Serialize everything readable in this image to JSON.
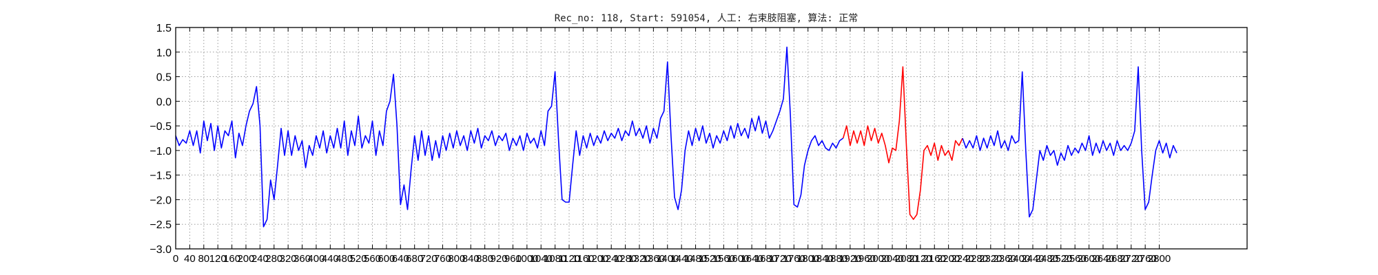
{
  "chart_data": {
    "type": "line",
    "title": "Rec_no: 118, Start: 591054, 人工: 右束肢阻塞, 算法: 正常",
    "xlabel": "",
    "ylabel": "",
    "xlim": [
      0,
      3050
    ],
    "ylim": [
      -3.0,
      1.5
    ],
    "yticks": [
      1.5,
      1.0,
      0.5,
      0.0,
      -0.5,
      -1.0,
      -1.5,
      -2.0,
      -2.5,
      -3.0
    ],
    "ytick_labels": [
      "1.5",
      "1.0",
      "0.5",
      "0.0",
      "−0.5",
      "−1.0",
      "−1.5",
      "−2.0",
      "−2.5",
      "−3.0"
    ],
    "xticks_step": 40,
    "xticks_max": 2800,
    "grid": true,
    "grid_style": "dotted",
    "colors": {
      "normal": "#0000ff",
      "highlight": "#ff0000",
      "axes": "#000000",
      "grid": "#9a9a9a"
    },
    "series": [
      {
        "color": "#0000ff",
        "values": [
          [
            0,
            -0.7
          ],
          [
            10,
            -0.9
          ],
          [
            20,
            -0.78
          ],
          [
            30,
            -0.85
          ],
          [
            40,
            -0.6
          ],
          [
            50,
            -0.9
          ],
          [
            60,
            -0.6
          ],
          [
            70,
            -1.05
          ],
          [
            80,
            -0.4
          ],
          [
            90,
            -0.8
          ],
          [
            100,
            -0.45
          ],
          [
            110,
            -1.0
          ],
          [
            120,
            -0.5
          ],
          [
            130,
            -0.95
          ],
          [
            140,
            -0.6
          ],
          [
            150,
            -0.7
          ],
          [
            160,
            -0.4
          ],
          [
            170,
            -1.15
          ],
          [
            180,
            -0.65
          ],
          [
            190,
            -0.9
          ],
          [
            200,
            -0.5
          ],
          [
            210,
            -0.2
          ],
          [
            220,
            -0.05
          ],
          [
            230,
            0.3
          ],
          [
            240,
            -0.5
          ],
          [
            250,
            -2.55
          ],
          [
            260,
            -2.4
          ],
          [
            270,
            -1.6
          ],
          [
            280,
            -2.0
          ],
          [
            290,
            -1.3
          ],
          [
            300,
            -0.55
          ],
          [
            310,
            -1.1
          ],
          [
            320,
            -0.6
          ],
          [
            330,
            -1.1
          ],
          [
            340,
            -0.7
          ],
          [
            350,
            -1.0
          ],
          [
            360,
            -0.8
          ],
          [
            370,
            -1.35
          ],
          [
            380,
            -0.9
          ],
          [
            390,
            -1.1
          ],
          [
            400,
            -0.7
          ],
          [
            410,
            -0.95
          ],
          [
            420,
            -0.6
          ],
          [
            430,
            -1.05
          ],
          [
            440,
            -0.7
          ],
          [
            450,
            -0.95
          ],
          [
            460,
            -0.55
          ],
          [
            470,
            -0.95
          ],
          [
            480,
            -0.4
          ],
          [
            490,
            -1.1
          ],
          [
            500,
            -0.6
          ],
          [
            510,
            -0.9
          ],
          [
            520,
            -0.3
          ],
          [
            530,
            -0.95
          ],
          [
            540,
            -0.7
          ],
          [
            550,
            -0.85
          ],
          [
            560,
            -0.4
          ],
          [
            570,
            -1.1
          ],
          [
            580,
            -0.6
          ],
          [
            590,
            -0.9
          ],
          [
            600,
            -0.2
          ],
          [
            610,
            0.0
          ],
          [
            620,
            0.55
          ],
          [
            630,
            -0.5
          ],
          [
            640,
            -2.1
          ],
          [
            650,
            -1.7
          ],
          [
            660,
            -2.2
          ],
          [
            670,
            -1.4
          ],
          [
            680,
            -0.7
          ],
          [
            690,
            -1.2
          ],
          [
            700,
            -0.6
          ],
          [
            710,
            -1.1
          ],
          [
            720,
            -0.7
          ],
          [
            730,
            -1.2
          ],
          [
            740,
            -0.8
          ],
          [
            750,
            -1.15
          ],
          [
            760,
            -0.7
          ],
          [
            770,
            -1.0
          ],
          [
            780,
            -0.65
          ],
          [
            790,
            -0.95
          ],
          [
            800,
            -0.6
          ],
          [
            810,
            -0.9
          ],
          [
            820,
            -0.7
          ],
          [
            830,
            -1.0
          ],
          [
            840,
            -0.6
          ],
          [
            850,
            -0.85
          ],
          [
            860,
            -0.55
          ],
          [
            870,
            -0.95
          ],
          [
            880,
            -0.7
          ],
          [
            890,
            -0.8
          ],
          [
            900,
            -0.6
          ],
          [
            910,
            -0.9
          ],
          [
            920,
            -0.7
          ],
          [
            930,
            -0.8
          ],
          [
            940,
            -0.65
          ],
          [
            950,
            -1.0
          ],
          [
            960,
            -0.75
          ],
          [
            970,
            -0.9
          ],
          [
            980,
            -0.7
          ],
          [
            990,
            -1.0
          ],
          [
            1000,
            -0.65
          ],
          [
            1010,
            -0.85
          ],
          [
            1020,
            -0.75
          ],
          [
            1030,
            -0.95
          ],
          [
            1040,
            -0.6
          ],
          [
            1050,
            -0.9
          ],
          [
            1060,
            -0.2
          ],
          [
            1070,
            -0.1
          ],
          [
            1080,
            0.6
          ],
          [
            1090,
            -0.8
          ],
          [
            1100,
            -2.0
          ],
          [
            1110,
            -2.05
          ],
          [
            1120,
            -2.05
          ],
          [
            1130,
            -1.3
          ],
          [
            1140,
            -0.6
          ],
          [
            1150,
            -1.1
          ],
          [
            1160,
            -0.7
          ],
          [
            1170,
            -0.95
          ],
          [
            1180,
            -0.65
          ],
          [
            1190,
            -0.9
          ],
          [
            1200,
            -0.7
          ],
          [
            1210,
            -0.85
          ],
          [
            1220,
            -0.6
          ],
          [
            1230,
            -0.8
          ],
          [
            1240,
            -0.65
          ],
          [
            1250,
            -0.75
          ],
          [
            1260,
            -0.55
          ],
          [
            1270,
            -0.8
          ],
          [
            1280,
            -0.6
          ],
          [
            1290,
            -0.7
          ],
          [
            1300,
            -0.4
          ],
          [
            1310,
            -0.7
          ],
          [
            1320,
            -0.55
          ],
          [
            1330,
            -0.75
          ],
          [
            1340,
            -0.5
          ],
          [
            1350,
            -0.85
          ],
          [
            1360,
            -0.55
          ],
          [
            1370,
            -0.75
          ],
          [
            1380,
            -0.35
          ],
          [
            1390,
            -0.2
          ],
          [
            1400,
            0.8
          ],
          [
            1410,
            -0.7
          ],
          [
            1420,
            -1.95
          ],
          [
            1430,
            -2.2
          ],
          [
            1440,
            -1.8
          ],
          [
            1450,
            -1.0
          ],
          [
            1460,
            -0.6
          ],
          [
            1470,
            -0.9
          ],
          [
            1480,
            -0.55
          ],
          [
            1490,
            -0.8
          ],
          [
            1500,
            -0.5
          ],
          [
            1510,
            -0.85
          ],
          [
            1520,
            -0.65
          ],
          [
            1530,
            -0.95
          ],
          [
            1540,
            -0.7
          ],
          [
            1550,
            -0.85
          ],
          [
            1560,
            -0.6
          ],
          [
            1570,
            -0.8
          ],
          [
            1580,
            -0.5
          ],
          [
            1590,
            -0.75
          ],
          [
            1600,
            -0.45
          ],
          [
            1610,
            -0.7
          ],
          [
            1620,
            -0.55
          ],
          [
            1630,
            -0.75
          ],
          [
            1640,
            -0.35
          ],
          [
            1650,
            -0.6
          ],
          [
            1660,
            -0.3
          ],
          [
            1670,
            -0.65
          ],
          [
            1680,
            -0.4
          ],
          [
            1690,
            -0.75
          ],
          [
            1700,
            -0.6
          ],
          [
            1710,
            -0.4
          ],
          [
            1720,
            -0.2
          ],
          [
            1730,
            0.05
          ],
          [
            1740,
            1.1
          ],
          [
            1750,
            -0.3
          ],
          [
            1760,
            -2.1
          ],
          [
            1770,
            -2.15
          ],
          [
            1780,
            -1.9
          ],
          [
            1790,
            -1.3
          ],
          [
            1800,
            -1.0
          ],
          [
            1810,
            -0.8
          ],
          [
            1820,
            -0.7
          ],
          [
            1830,
            -0.9
          ],
          [
            1840,
            -0.8
          ],
          [
            1850,
            -0.95
          ],
          [
            1860,
            -1.0
          ],
          [
            1870,
            -0.85
          ],
          [
            1880,
            -0.95
          ],
          [
            1890,
            -0.8
          ],
          [
            1900,
            -0.75
          ]
        ]
      },
      {
        "color": "#ff0000",
        "values": [
          [
            1900,
            -0.75
          ],
          [
            1910,
            -0.5
          ],
          [
            1920,
            -0.9
          ],
          [
            1930,
            -0.6
          ],
          [
            1940,
            -0.85
          ],
          [
            1950,
            -0.6
          ],
          [
            1960,
            -0.9
          ],
          [
            1970,
            -0.5
          ],
          [
            1980,
            -0.8
          ],
          [
            1990,
            -0.55
          ],
          [
            2000,
            -0.85
          ],
          [
            2010,
            -0.65
          ],
          [
            2020,
            -0.9
          ],
          [
            2030,
            -1.25
          ],
          [
            2040,
            -0.95
          ],
          [
            2050,
            -1.0
          ],
          [
            2060,
            -0.4
          ],
          [
            2070,
            0.7
          ],
          [
            2080,
            -0.9
          ],
          [
            2090,
            -2.3
          ],
          [
            2100,
            -2.4
          ],
          [
            2110,
            -2.3
          ],
          [
            2120,
            -1.8
          ],
          [
            2130,
            -1.0
          ],
          [
            2140,
            -0.9
          ],
          [
            2150,
            -1.1
          ],
          [
            2160,
            -0.85
          ],
          [
            2170,
            -1.2
          ],
          [
            2180,
            -0.9
          ],
          [
            2190,
            -1.1
          ],
          [
            2200,
            -1.0
          ],
          [
            2210,
            -1.2
          ],
          [
            2220,
            -0.8
          ],
          [
            2230,
            -0.9
          ],
          [
            2240,
            -0.75
          ]
        ]
      },
      {
        "color": "#0000ff",
        "values": [
          [
            2240,
            -0.75
          ],
          [
            2250,
            -0.95
          ],
          [
            2260,
            -0.8
          ],
          [
            2270,
            -0.95
          ],
          [
            2280,
            -0.7
          ],
          [
            2290,
            -1.0
          ],
          [
            2300,
            -0.75
          ],
          [
            2310,
            -0.95
          ],
          [
            2320,
            -0.7
          ],
          [
            2330,
            -0.9
          ],
          [
            2340,
            -0.6
          ],
          [
            2350,
            -0.95
          ],
          [
            2360,
            -0.8
          ],
          [
            2370,
            -1.0
          ],
          [
            2380,
            -0.7
          ],
          [
            2390,
            -0.85
          ],
          [
            2400,
            -0.8
          ],
          [
            2410,
            0.6
          ],
          [
            2420,
            -1.0
          ],
          [
            2430,
            -2.35
          ],
          [
            2440,
            -2.2
          ],
          [
            2450,
            -1.6
          ],
          [
            2460,
            -1.0
          ],
          [
            2470,
            -1.2
          ],
          [
            2480,
            -0.9
          ],
          [
            2490,
            -1.1
          ],
          [
            2500,
            -1.0
          ],
          [
            2510,
            -1.3
          ],
          [
            2520,
            -1.05
          ],
          [
            2530,
            -1.2
          ],
          [
            2540,
            -0.9
          ],
          [
            2550,
            -1.1
          ],
          [
            2560,
            -0.95
          ],
          [
            2570,
            -1.05
          ],
          [
            2580,
            -0.85
          ],
          [
            2590,
            -1.0
          ],
          [
            2600,
            -0.7
          ],
          [
            2610,
            -1.1
          ],
          [
            2620,
            -0.85
          ],
          [
            2630,
            -1.05
          ],
          [
            2640,
            -0.8
          ],
          [
            2650,
            -1.0
          ],
          [
            2660,
            -0.85
          ],
          [
            2670,
            -1.1
          ],
          [
            2680,
            -0.8
          ],
          [
            2690,
            -1.0
          ],
          [
            2700,
            -0.9
          ],
          [
            2710,
            -1.0
          ],
          [
            2720,
            -0.85
          ],
          [
            2730,
            -0.6
          ],
          [
            2740,
            0.7
          ],
          [
            2750,
            -1.0
          ],
          [
            2760,
            -2.2
          ],
          [
            2770,
            -2.05
          ],
          [
            2780,
            -1.5
          ],
          [
            2790,
            -1.0
          ],
          [
            2800,
            -0.8
          ],
          [
            2810,
            -1.05
          ],
          [
            2820,
            -0.85
          ],
          [
            2830,
            -1.15
          ],
          [
            2840,
            -0.9
          ],
          [
            2850,
            -1.05
          ]
        ]
      }
    ]
  }
}
